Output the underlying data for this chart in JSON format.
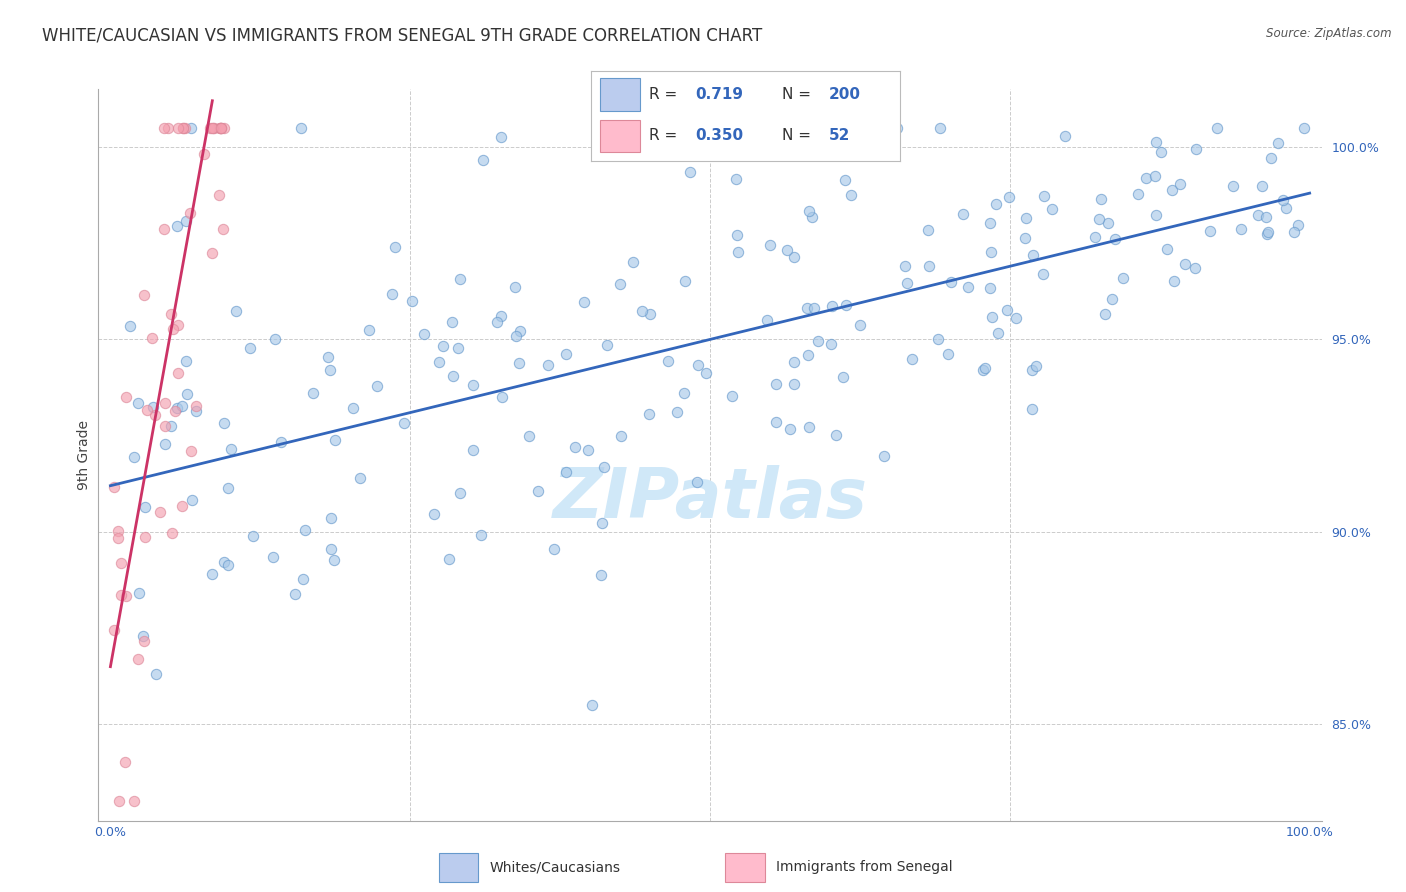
{
  "title": "WHITE/CAUCASIAN VS IMMIGRANTS FROM SENEGAL 9TH GRADE CORRELATION CHART",
  "source": "Source: ZipAtlas.com",
  "ylabel": "9th Grade",
  "ymin": 82.5,
  "ymax": 101.5,
  "xmin": -0.01,
  "xmax": 1.01,
  "blue_R": 0.719,
  "blue_N": 200,
  "pink_R": 0.35,
  "pink_N": 52,
  "blue_color": "#A8C8E8",
  "pink_color": "#F4A0B0",
  "blue_edge_color": "#6699CC",
  "pink_edge_color": "#DD8899",
  "blue_line_color": "#3366BB",
  "pink_line_color": "#CC3366",
  "legend_blue_face": "#BBCCEE",
  "legend_pink_face": "#FFBBCC",
  "watermark_text": "ZIPatlas",
  "watermark_color": "#D0E8F8",
  "background_color": "#FFFFFF",
  "grid_color": "#CCCCCC",
  "title_fontsize": 12,
  "tick_fontsize": 9,
  "blue_trend_x": [
    0.0,
    1.0
  ],
  "blue_trend_y": [
    91.2,
    98.8
  ],
  "pink_trend_x": [
    0.0,
    0.085
  ],
  "pink_trend_y": [
    86.5,
    101.2
  ]
}
